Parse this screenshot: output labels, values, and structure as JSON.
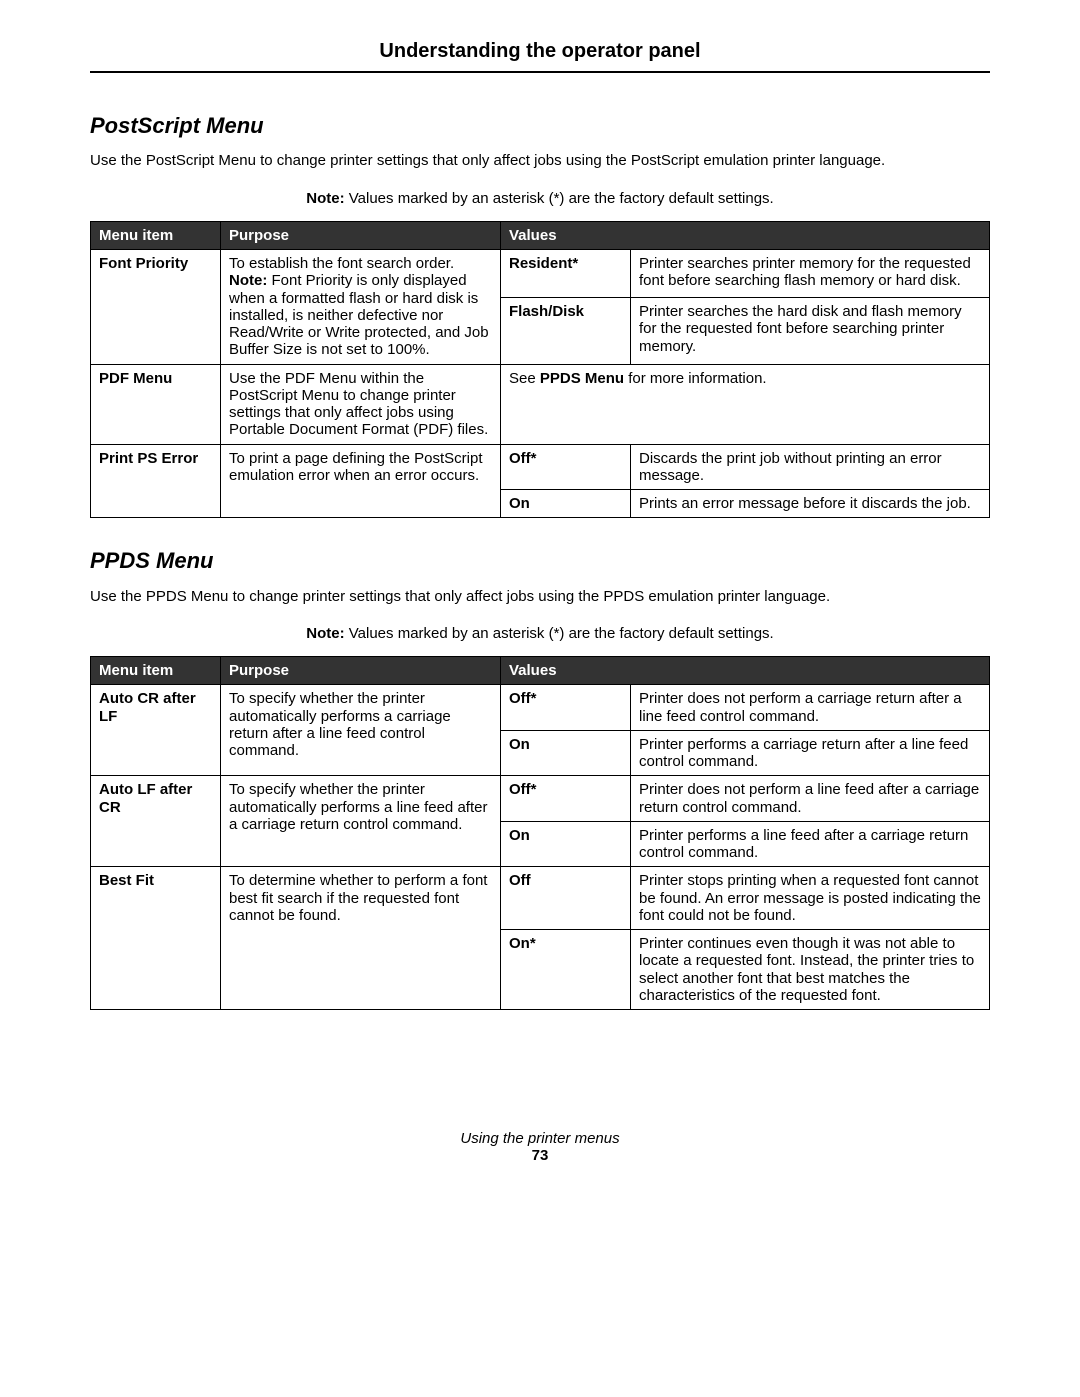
{
  "page": {
    "heading": "Understanding the operator panel",
    "footer_text": "Using the printer menus",
    "page_number": "73"
  },
  "sections": [
    {
      "title": "PostScript Menu",
      "intro": "Use the PostScript Menu to change printer settings that only affect jobs using the PostScript emulation printer language.",
      "note_label": "Note:",
      "note_text": " Values marked by an asterisk (*) are the factory default settings.",
      "headers": {
        "menu_item": "Menu item",
        "purpose": "Purpose",
        "values": "Values"
      },
      "rows": [
        {
          "item": "Font Priority",
          "purpose_main": "To establish the font search order.",
          "purpose_note_label": "Note:",
          "purpose_note_text": " Font Priority is only displayed when a formatted flash or hard disk is installed, is neither defective nor Read/Write or Write protected, and Job Buffer Size is not set to 100%.",
          "values": [
            {
              "value": "Resident*",
              "value_bold": true,
              "desc": "Printer searches printer memory for the requested font before searching flash memory or hard disk."
            },
            {
              "value": "Flash/Disk",
              "value_bold": true,
              "desc": "Printer searches the hard disk and flash memory for the requested font before searching printer memory."
            }
          ]
        },
        {
          "item": "PDF Menu",
          "purpose_main": "Use the PDF Menu within the PostScript Menu to change printer settings that only affect jobs using Portable Document Format (PDF) files.",
          "combined_prefix": "See ",
          "combined_bold": "PPDS Menu",
          "combined_suffix": " for more information."
        },
        {
          "item": "Print PS Error",
          "purpose_main": "To print a page defining the PostScript emulation error when an error occurs.",
          "values": [
            {
              "value": "Off*",
              "value_bold": true,
              "desc": "Discards the print job without printing an error message."
            },
            {
              "value": "On",
              "value_bold": true,
              "desc": "Prints an error message before it discards the job."
            }
          ]
        }
      ]
    },
    {
      "title": "PPDS Menu",
      "intro": "Use the PPDS Menu to change printer settings that only affect jobs using the PPDS emulation printer language.",
      "note_label": "Note:",
      "note_text": " Values marked by an asterisk (*) are the factory default settings.",
      "headers": {
        "menu_item": "Menu item",
        "purpose": "Purpose",
        "values": "Values"
      },
      "rows": [
        {
          "item": "Auto CR after LF",
          "purpose_main": "To specify whether the printer automatically performs a carriage return after a line feed control command.",
          "values": [
            {
              "value": "Off*",
              "value_bold": true,
              "desc": "Printer does not perform a carriage return after a line feed control command."
            },
            {
              "value": "On",
              "value_bold": true,
              "desc": "Printer performs a carriage return after a line feed control command."
            }
          ]
        },
        {
          "item": "Auto LF after CR",
          "purpose_main": "To specify whether the printer automatically performs a line feed after a carriage return control command.",
          "values": [
            {
              "value": "Off*",
              "value_bold": true,
              "desc": "Printer does not perform a line feed after a carriage return control command."
            },
            {
              "value": "On",
              "value_bold": true,
              "desc": "Printer performs a line feed after a carriage return control command."
            }
          ]
        },
        {
          "item": "Best Fit",
          "purpose_main": "To determine whether to perform a font best fit search if the requested font cannot be found.",
          "values": [
            {
              "value": "Off",
              "value_bold": true,
              "desc": "Printer stops printing when a requested font cannot be found. An error message is posted indicating the font could not be found."
            },
            {
              "value": "On*",
              "value_bold": true,
              "desc": "Printer continues even though it was not able to locate a requested font. Instead, the printer tries to select another font that best matches the characteristics of the requested font."
            }
          ]
        }
      ]
    }
  ]
}
